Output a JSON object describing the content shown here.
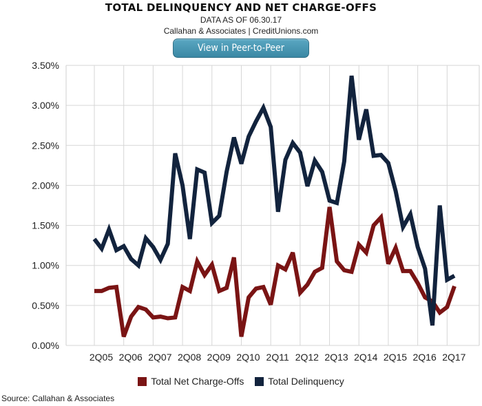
{
  "header": {
    "title": "TOTAL DELINQUENCY AND NET CHARGE-OFFS",
    "date_line": "DATA AS OF 06.30.17",
    "source_line": "Callahan & Associates | CreditUnions.com"
  },
  "button": {
    "label": "View in Peer-to-Peer"
  },
  "footer": {
    "source": "Source: Callahan & Associates"
  },
  "chart_data": {
    "type": "line",
    "title": "TOTAL DELINQUENCY AND NET CHARGE-OFFS",
    "ylim": [
      0,
      3.5
    ],
    "y_ticks": [
      0,
      0.5,
      1.0,
      1.5,
      2.0,
      2.5,
      3.0,
      3.5
    ],
    "y_tick_labels": [
      "0.00%",
      "0.50%",
      "1.00%",
      "1.50%",
      "2.00%",
      "2.50%",
      "3.00%",
      "3.50%"
    ],
    "x_tick_labels": [
      "2Q05",
      "2Q06",
      "2Q07",
      "2Q08",
      "2Q09",
      "2Q10",
      "2Q11",
      "2Q12",
      "2Q13",
      "2Q14",
      "2Q15",
      "2Q16",
      "2Q17"
    ],
    "grid": true,
    "legend_position": "bottom",
    "series": [
      {
        "name": "Total Net Charge-Offs",
        "color": "#7a1414",
        "values": [
          0.68,
          0.68,
          0.72,
          0.73,
          0.11,
          0.36,
          0.48,
          0.45,
          0.35,
          0.36,
          0.34,
          0.35,
          0.73,
          0.68,
          1.05,
          0.88,
          1.01,
          0.68,
          0.72,
          1.1,
          0.11,
          0.6,
          0.71,
          0.73,
          0.51,
          1.0,
          0.95,
          1.16,
          0.66,
          0.76,
          0.92,
          0.97,
          1.73,
          1.05,
          0.94,
          0.92,
          1.26,
          1.16,
          1.5,
          1.6,
          1.02,
          1.22,
          0.93,
          0.93,
          0.78,
          0.6,
          0.55,
          0.41,
          0.48,
          0.74
        ]
      },
      {
        "name": "Total Delinquency",
        "color": "#12233d",
        "values": [
          1.33,
          1.21,
          1.45,
          1.19,
          1.24,
          1.08,
          1.0,
          1.34,
          1.23,
          1.07,
          1.27,
          2.4,
          2.0,
          1.33,
          2.2,
          2.16,
          1.53,
          1.62,
          2.17,
          2.6,
          2.27,
          2.61,
          2.8,
          2.97,
          2.73,
          1.67,
          2.32,
          2.53,
          2.41,
          1.99,
          2.31,
          2.17,
          1.81,
          1.78,
          2.3,
          3.37,
          2.57,
          2.95,
          2.37,
          2.38,
          2.28,
          1.93,
          1.48,
          1.64,
          1.23,
          0.96,
          0.25,
          1.75,
          0.82,
          0.87
        ]
      }
    ]
  }
}
